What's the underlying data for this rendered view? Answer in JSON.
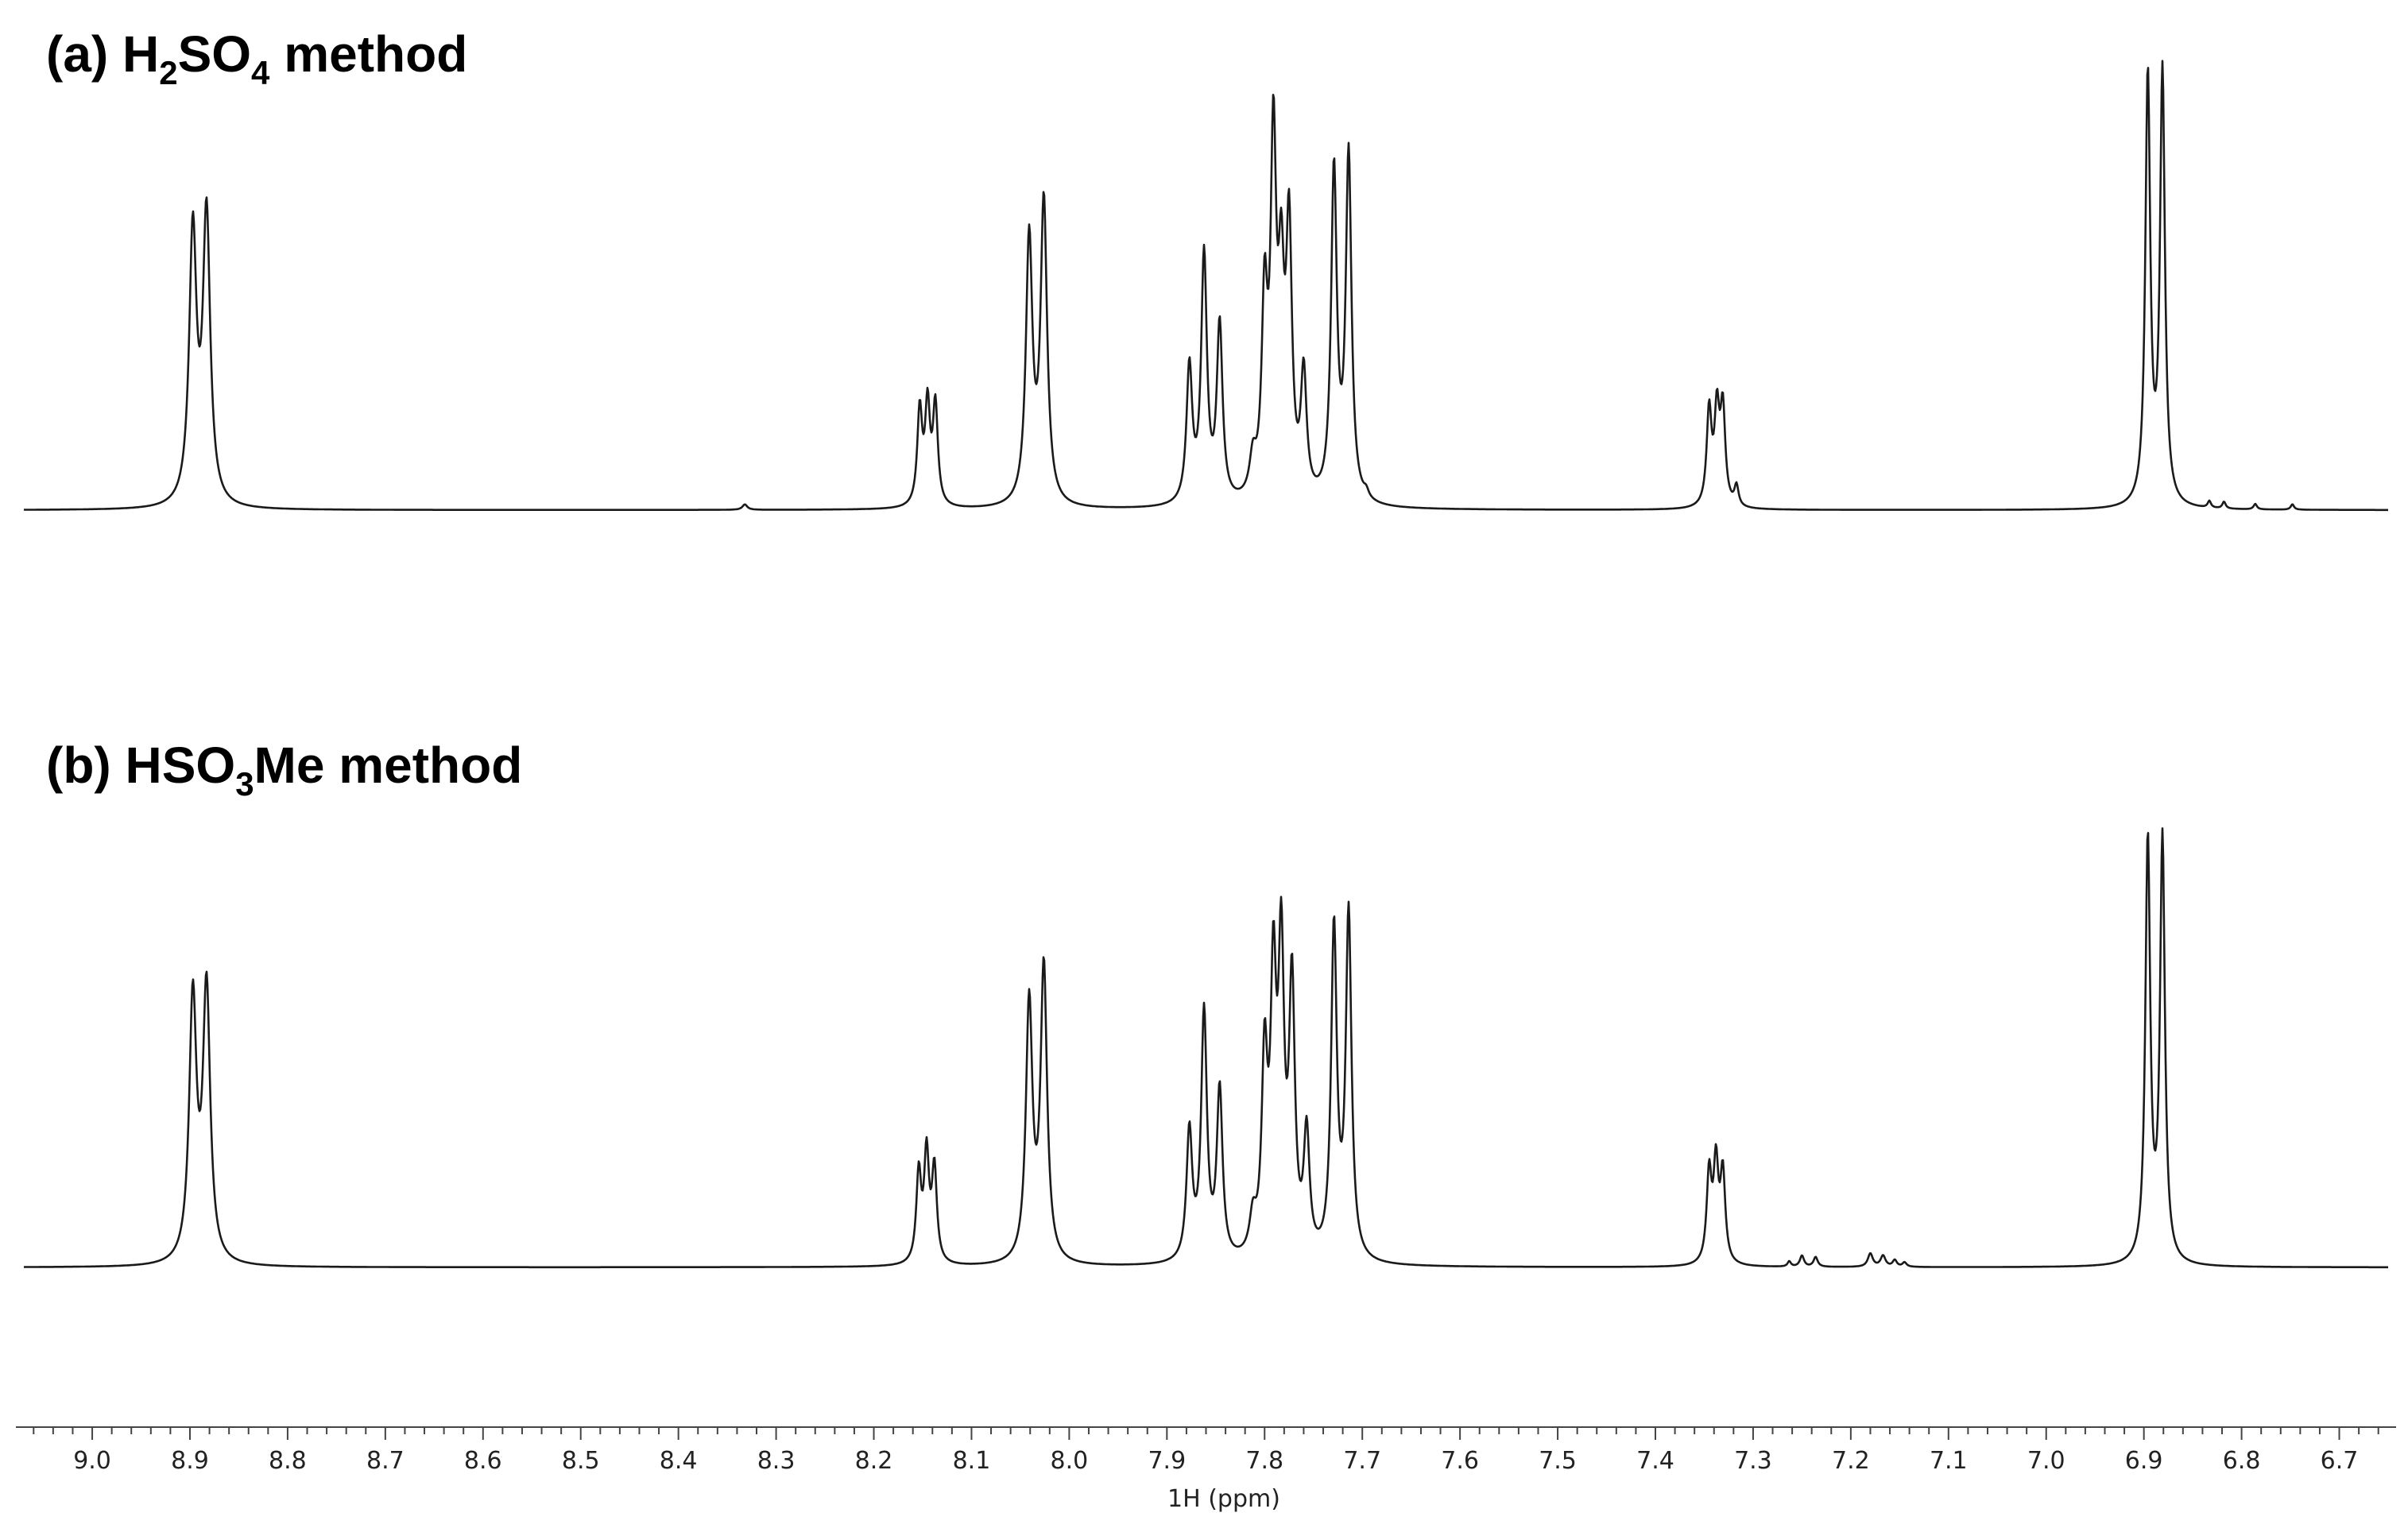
{
  "chart_data": {
    "type": "line",
    "chart_kind": "1H NMR spectrum (stacked)",
    "xlabel": "1H (ppm)",
    "xlim": [
      9.07,
      6.65
    ],
    "x_reversed": true,
    "x_ticks": [
      9.0,
      8.9,
      8.8,
      8.7,
      8.6,
      8.5,
      8.4,
      8.3,
      8.2,
      8.1,
      8.0,
      7.9,
      7.8,
      7.7,
      7.6,
      7.5,
      7.4,
      7.3,
      7.2,
      7.1,
      7.0,
      6.9,
      6.8,
      6.7
    ],
    "x_minor_step": 0.02,
    "ylabel": "",
    "grid": false,
    "panels": [
      {
        "label": {
          "prefix": "(a) H",
          "sub1": "2",
          "mid": "SO",
          "sub2": "4",
          "suffix": " method"
        },
        "peaks": [
          {
            "ppm": 8.897,
            "h": 0.6,
            "w": 0.0045
          },
          {
            "ppm": 8.883,
            "h": 0.635,
            "w": 0.0045
          },
          {
            "ppm": 8.332,
            "h": 0.012,
            "w": 0.003
          },
          {
            "ppm": 8.153,
            "h": 0.21,
            "w": 0.003
          },
          {
            "ppm": 8.145,
            "h": 0.215,
            "w": 0.003
          },
          {
            "ppm": 8.137,
            "h": 0.22,
            "w": 0.003
          },
          {
            "ppm": 8.041,
            "h": 0.585,
            "w": 0.004
          },
          {
            "ppm": 8.026,
            "h": 0.665,
            "w": 0.004
          },
          {
            "ppm": 7.877,
            "h": 0.3,
            "w": 0.0035
          },
          {
            "ppm": 7.862,
            "h": 0.545,
            "w": 0.0035
          },
          {
            "ppm": 7.846,
            "h": 0.39,
            "w": 0.0035
          },
          {
            "ppm": 7.812,
            "h": 0.08,
            "w": 0.004
          },
          {
            "ppm": 7.8,
            "h": 0.42,
            "w": 0.0035
          },
          {
            "ppm": 7.791,
            "h": 0.76,
            "w": 0.0035
          },
          {
            "ppm": 7.783,
            "h": 0.42,
            "w": 0.0035
          },
          {
            "ppm": 7.775,
            "h": 0.575,
            "w": 0.0035
          },
          {
            "ppm": 7.76,
            "h": 0.27,
            "w": 0.0035
          },
          {
            "ppm": 7.729,
            "h": 0.73,
            "w": 0.0035
          },
          {
            "ppm": 7.714,
            "h": 0.765,
            "w": 0.0035
          },
          {
            "ppm": 7.696,
            "h": 0.015,
            "w": 0.003
          },
          {
            "ppm": 7.345,
            "h": 0.21,
            "w": 0.003
          },
          {
            "ppm": 7.337,
            "h": 0.2,
            "w": 0.003
          },
          {
            "ppm": 7.331,
            "h": 0.21,
            "w": 0.003
          },
          {
            "ppm": 7.317,
            "h": 0.045,
            "w": 0.0025
          },
          {
            "ppm": 6.896,
            "h": 0.95,
            "w": 0.003
          },
          {
            "ppm": 6.881,
            "h": 0.955,
            "w": 0.003
          },
          {
            "ppm": 6.833,
            "h": 0.015,
            "w": 0.002
          },
          {
            "ppm": 6.818,
            "h": 0.015,
            "w": 0.002
          },
          {
            "ppm": 6.786,
            "h": 0.012,
            "w": 0.002
          },
          {
            "ppm": 6.748,
            "h": 0.012,
            "w": 0.002
          }
        ]
      },
      {
        "label": {
          "prefix": "(b) HSO",
          "sub1": "3",
          "mid": "Me",
          "sub2": "",
          "suffix": " method"
        },
        "peaks": [
          {
            "ppm": 8.897,
            "h": 0.59,
            "w": 0.0045
          },
          {
            "ppm": 8.883,
            "h": 0.61,
            "w": 0.0045
          },
          {
            "ppm": 8.154,
            "h": 0.2,
            "w": 0.003
          },
          {
            "ppm": 8.146,
            "h": 0.24,
            "w": 0.003
          },
          {
            "ppm": 8.138,
            "h": 0.21,
            "w": 0.003
          },
          {
            "ppm": 8.041,
            "h": 0.58,
            "w": 0.004
          },
          {
            "ppm": 8.026,
            "h": 0.66,
            "w": 0.004
          },
          {
            "ppm": 7.877,
            "h": 0.29,
            "w": 0.0035
          },
          {
            "ppm": 7.862,
            "h": 0.555,
            "w": 0.0035
          },
          {
            "ppm": 7.846,
            "h": 0.38,
            "w": 0.0035
          },
          {
            "ppm": 7.812,
            "h": 0.08,
            "w": 0.004
          },
          {
            "ppm": 7.8,
            "h": 0.43,
            "w": 0.0035
          },
          {
            "ppm": 7.791,
            "h": 0.59,
            "w": 0.0035
          },
          {
            "ppm": 7.783,
            "h": 0.65,
            "w": 0.0035
          },
          {
            "ppm": 7.772,
            "h": 0.6,
            "w": 0.0035
          },
          {
            "ppm": 7.757,
            "h": 0.27,
            "w": 0.0035
          },
          {
            "ppm": 7.729,
            "h": 0.74,
            "w": 0.0035
          },
          {
            "ppm": 7.714,
            "h": 0.775,
            "w": 0.0035
          },
          {
            "ppm": 7.345,
            "h": 0.2,
            "w": 0.003
          },
          {
            "ppm": 7.338,
            "h": 0.215,
            "w": 0.003
          },
          {
            "ppm": 7.331,
            "h": 0.2,
            "w": 0.003
          },
          {
            "ppm": 7.263,
            "h": 0.012,
            "w": 0.002
          },
          {
            "ppm": 7.25,
            "h": 0.025,
            "w": 0.0025
          },
          {
            "ppm": 7.236,
            "h": 0.022,
            "w": 0.0025
          },
          {
            "ppm": 7.18,
            "h": 0.03,
            "w": 0.003
          },
          {
            "ppm": 7.167,
            "h": 0.025,
            "w": 0.003
          },
          {
            "ppm": 7.155,
            "h": 0.015,
            "w": 0.0025
          },
          {
            "ppm": 7.145,
            "h": 0.01,
            "w": 0.0025
          },
          {
            "ppm": 6.896,
            "h": 0.95,
            "w": 0.003
          },
          {
            "ppm": 6.881,
            "h": 0.95,
            "w": 0.003
          }
        ]
      }
    ]
  }
}
